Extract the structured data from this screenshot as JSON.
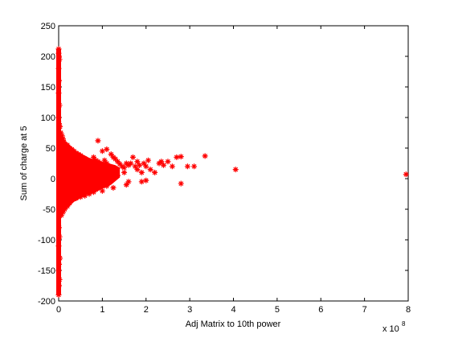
{
  "chart_data": {
    "type": "scatter",
    "title": "",
    "xlabel": "Adj Matrix to 10th power",
    "ylabel": "Sum of charge at 5",
    "x_exponent_label": "x 10",
    "x_exponent_power": "8",
    "x_scale": 100000000,
    "xlim": [
      0,
      8
    ],
    "ylim": [
      -200,
      250
    ],
    "x_ticks": [
      0,
      1,
      2,
      3,
      4,
      5,
      6,
      7,
      8
    ],
    "x_tick_labels": [
      "0",
      "1",
      "2",
      "3",
      "4",
      "5",
      "6",
      "7",
      "8"
    ],
    "y_ticks": [
      -200,
      -150,
      -100,
      -50,
      0,
      50,
      100,
      150,
      200,
      250
    ],
    "y_tick_labels": [
      "-200",
      "-150",
      "-100",
      "-50",
      "0",
      "50",
      "100",
      "150",
      "200",
      "250"
    ],
    "grid": false,
    "legend": "none",
    "marker": "asterisk",
    "marker_color": "#ff0000",
    "series": [
      {
        "points": [
          [
            0.0,
            212
          ],
          [
            0.0,
            205
          ],
          [
            0.01,
            200
          ],
          [
            0.02,
            195
          ],
          [
            0.0,
            180
          ],
          [
            0.01,
            160
          ],
          [
            0.0,
            140
          ],
          [
            0.02,
            120
          ],
          [
            0.0,
            100
          ],
          [
            0.01,
            90
          ],
          [
            0.03,
            85
          ],
          [
            0.0,
            -190
          ],
          [
            0.01,
            -175
          ],
          [
            0.02,
            -165
          ],
          [
            0.0,
            -150
          ],
          [
            0.01,
            -140
          ],
          [
            0.03,
            -130
          ],
          [
            0.0,
            -110
          ],
          [
            0.02,
            -95
          ],
          [
            0.01,
            -80
          ],
          [
            0.05,
            75
          ],
          [
            0.08,
            70
          ],
          [
            0.1,
            65
          ],
          [
            0.12,
            60
          ],
          [
            0.06,
            -60
          ],
          [
            0.1,
            -55
          ],
          [
            0.14,
            -50
          ],
          [
            0.2,
            55
          ],
          [
            0.25,
            50
          ],
          [
            0.3,
            48
          ],
          [
            0.35,
            45
          ],
          [
            0.2,
            -45
          ],
          [
            0.25,
            -40
          ],
          [
            0.3,
            -35
          ],
          [
            0.4,
            42
          ],
          [
            0.45,
            40
          ],
          [
            0.5,
            38
          ],
          [
            0.55,
            35
          ],
          [
            0.4,
            -32
          ],
          [
            0.5,
            -30
          ],
          [
            0.6,
            -28
          ],
          [
            0.6,
            33
          ],
          [
            0.65,
            30
          ],
          [
            0.7,
            28
          ],
          [
            0.75,
            26
          ],
          [
            0.7,
            -25
          ],
          [
            0.8,
            -22
          ],
          [
            0.85,
            -18
          ],
          [
            0.9,
            62
          ],
          [
            0.8,
            35
          ],
          [
            0.85,
            30
          ],
          [
            0.9,
            28
          ],
          [
            0.95,
            25
          ],
          [
            1.0,
            22
          ],
          [
            1.0,
            -20
          ],
          [
            1.05,
            30
          ],
          [
            1.1,
            25
          ],
          [
            1.15,
            20
          ],
          [
            1.2,
            15
          ],
          [
            1.1,
            -12
          ],
          [
            1.25,
            -15
          ],
          [
            1.3,
            10
          ],
          [
            1.0,
            45
          ],
          [
            1.1,
            48
          ],
          [
            1.2,
            40
          ],
          [
            1.25,
            35
          ],
          [
            1.3,
            32
          ],
          [
            1.35,
            28
          ],
          [
            1.4,
            24
          ],
          [
            1.45,
            20
          ],
          [
            1.5,
            18
          ],
          [
            1.55,
            25
          ],
          [
            1.5,
            10
          ],
          [
            1.55,
            -10
          ],
          [
            1.6,
            22
          ],
          [
            1.65,
            25
          ],
          [
            1.7,
            35
          ],
          [
            1.75,
            20
          ],
          [
            1.8,
            15
          ],
          [
            1.8,
            28
          ],
          [
            1.85,
            22
          ],
          [
            1.9,
            10
          ],
          [
            1.95,
            25
          ],
          [
            2.0,
            20
          ],
          [
            2.05,
            30
          ],
          [
            2.1,
            15
          ],
          [
            2.2,
            10
          ],
          [
            2.3,
            25
          ],
          [
            2.35,
            28
          ],
          [
            2.4,
            22
          ],
          [
            2.5,
            28
          ],
          [
            2.6,
            20
          ],
          [
            2.7,
            35
          ],
          [
            2.8,
            36
          ],
          [
            2.95,
            20
          ],
          [
            3.1,
            20
          ],
          [
            3.35,
            37
          ],
          [
            1.35,
            5
          ],
          [
            1.6,
            -5
          ],
          [
            1.9,
            -5
          ],
          [
            2.0,
            -3
          ],
          [
            2.8,
            -8
          ],
          [
            4.05,
            15
          ],
          [
            7.95,
            7
          ]
        ]
      }
    ]
  }
}
